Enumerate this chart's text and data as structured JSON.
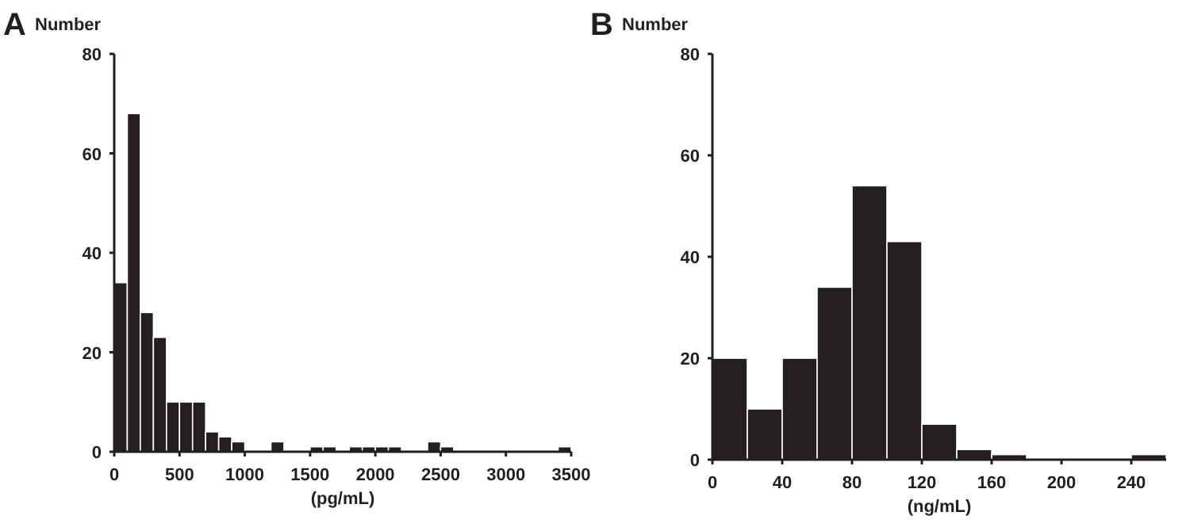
{
  "chart_data": [
    {
      "type": "histogram",
      "title": "A",
      "ylabel": "Number",
      "xlabel": "(pg/mL)",
      "bins": [
        0,
        100,
        200,
        300,
        400,
        500,
        600,
        700,
        800,
        900,
        1000,
        1100,
        1200,
        1300,
        1400,
        1500,
        1600,
        1700,
        1800,
        1900,
        2000,
        2100,
        2200,
        2300,
        2400,
        2500,
        2600,
        2700,
        2800,
        2900,
        3000,
        3100,
        3200,
        3300,
        3400,
        3500
      ],
      "values": [
        34,
        68,
        28,
        23,
        10,
        10,
        10,
        4,
        3,
        2,
        0,
        0,
        2,
        0,
        0,
        1,
        1,
        0,
        1,
        1,
        1,
        1,
        0,
        0,
        2,
        1,
        0,
        0,
        0,
        0,
        0,
        0,
        0,
        0,
        1
      ],
      "color": "#231f20",
      "xlim": [
        0,
        3500
      ],
      "xticks": [
        0,
        500,
        1000,
        1500,
        2000,
        2500,
        3000,
        3500
      ],
      "ylim": [
        0,
        80
      ],
      "yticks": [
        0,
        20,
        40,
        60,
        80
      ],
      "grid": false
    },
    {
      "type": "histogram",
      "title": "B",
      "ylabel": "Number",
      "xlabel": "(ng/mL)",
      "bins": [
        0,
        20,
        40,
        60,
        80,
        100,
        120,
        140,
        160,
        180,
        200,
        220,
        240,
        260
      ],
      "values": [
        20,
        10,
        20,
        34,
        54,
        43,
        7,
        2,
        1,
        0,
        0,
        0,
        1
      ],
      "color": "#231f20",
      "xlim": [
        0,
        260
      ],
      "xticks": [
        0,
        40,
        80,
        120,
        160,
        200,
        240
      ],
      "ylim": [
        0,
        80
      ],
      "yticks": [
        0,
        20,
        40,
        60,
        80
      ],
      "grid": false
    }
  ]
}
